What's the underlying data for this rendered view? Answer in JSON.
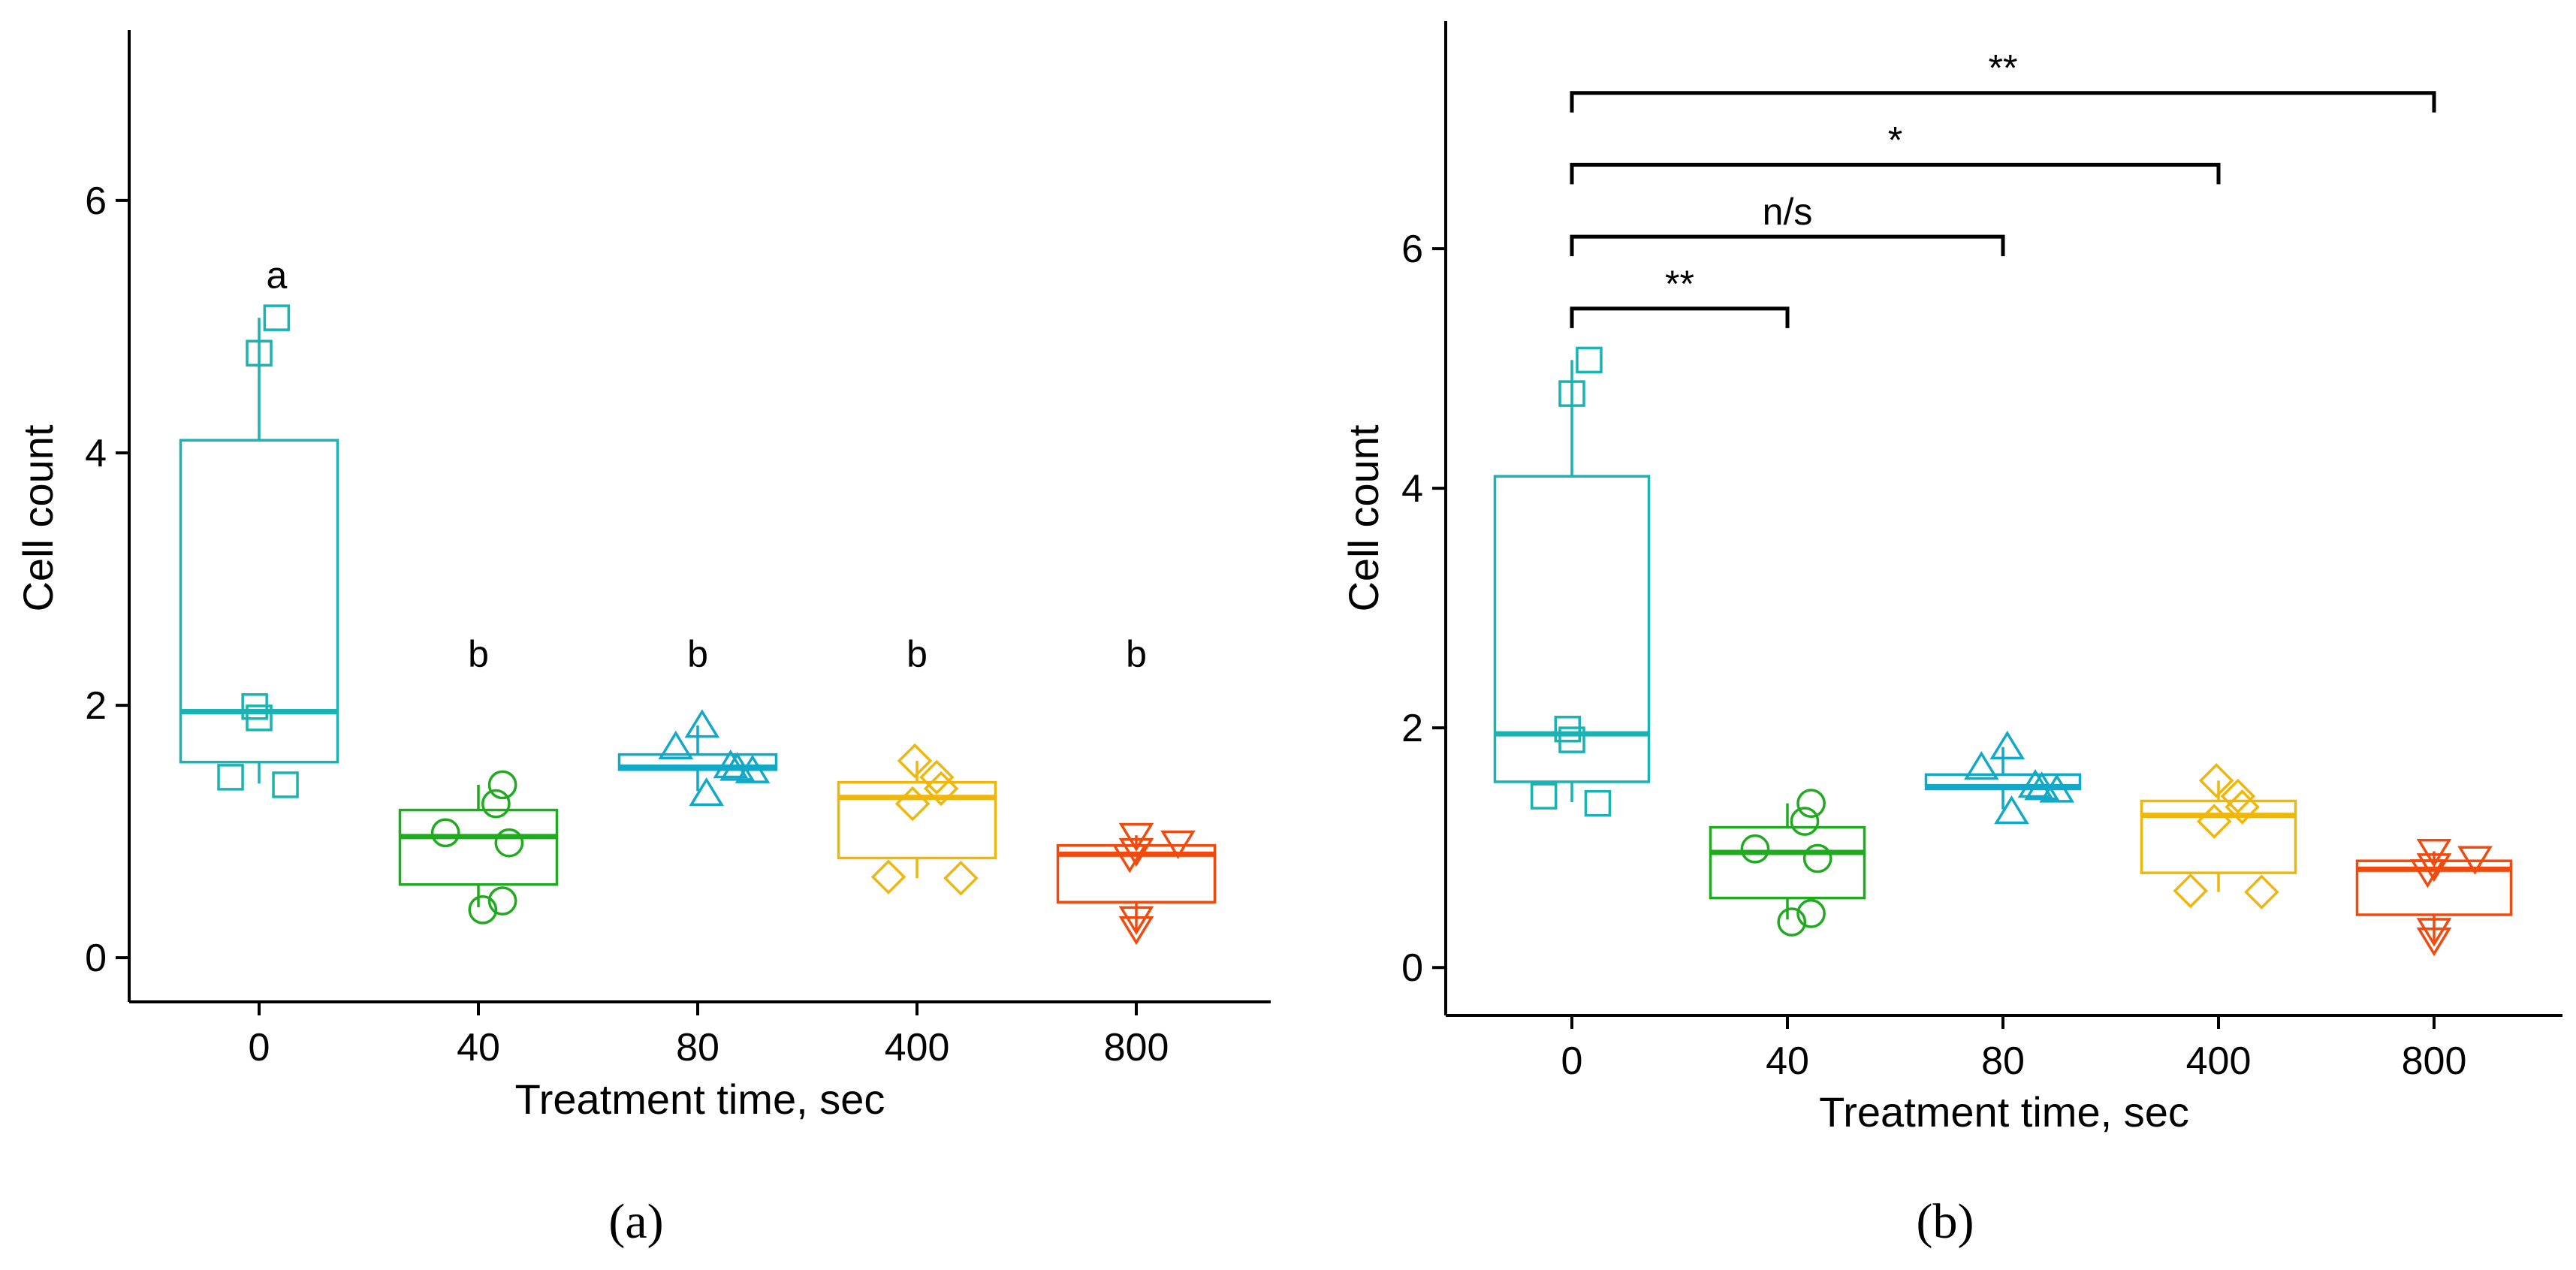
{
  "chart_data": [
    {
      "type": "box",
      "panel_label": "(a)",
      "title": "",
      "xlabel": "Treatment time, sec",
      "ylabel": "Cell count",
      "ylim": [
        -0.35,
        7.35
      ],
      "yticks": [
        0,
        2,
        4,
        6
      ],
      "categories": [
        "0",
        "40",
        "80",
        "400",
        "800"
      ],
      "colors": [
        "#1ab2b2",
        "#1faa1f",
        "#12a9c9",
        "#efb70e",
        "#f04a0e"
      ],
      "markers": [
        "square",
        "circle",
        "triangle-up",
        "diamond",
        "triangle-down"
      ],
      "boxes": [
        {
          "category": "0",
          "whisker_low": 1.38,
          "q1": 1.55,
          "median": 1.95,
          "q3": 4.1,
          "whisker_high": 5.07
        },
        {
          "category": "40",
          "whisker_low": 0.4,
          "q1": 0.58,
          "median": 0.96,
          "q3": 1.17,
          "whisker_high": 1.37
        },
        {
          "category": "80",
          "whisker_low": 1.32,
          "q1": 1.49,
          "median": 1.51,
          "q3": 1.61,
          "whisker_high": 1.84
        },
        {
          "category": "400",
          "whisker_low": 0.63,
          "q1": 0.79,
          "median": 1.27,
          "q3": 1.39,
          "whisker_high": 1.56
        },
        {
          "category": "800",
          "whisker_low": 0.22,
          "q1": 0.44,
          "median": 0.82,
          "q3": 0.89,
          "whisker_high": 0.97
        }
      ],
      "points": [
        {
          "category": "0",
          "y": [
            1.43,
            1.37,
            1.9,
            1.99,
            4.79,
            5.07
          ],
          "x_jitter": [
            -0.13,
            0.12,
            0.0,
            -0.02,
            0.0,
            0.08
          ]
        },
        {
          "category": "40",
          "y": [
            1.22,
            1.37,
            0.99,
            0.91,
            0.45,
            0.38
          ],
          "x_jitter": [
            0.08,
            0.11,
            -0.15,
            0.14,
            0.11,
            0.02
          ]
        },
        {
          "category": "80",
          "y": [
            1.67,
            1.84,
            1.52,
            1.48,
            1.5,
            1.3
          ],
          "x_jitter": [
            -0.1,
            0.02,
            0.15,
            0.25,
            0.18,
            0.04
          ]
        },
        {
          "category": "400",
          "y": [
            1.56,
            1.43,
            1.34,
            1.22,
            0.64,
            0.63
          ],
          "x_jitter": [
            -0.01,
            0.09,
            0.11,
            -0.02,
            -0.13,
            0.2
          ]
        },
        {
          "category": "800",
          "y": [
            0.97,
            0.91,
            0.85,
            0.8,
            0.31,
            0.23
          ],
          "x_jitter": [
            0.0,
            0.19,
            0.0,
            -0.03,
            0.0,
            0.0
          ]
        }
      ],
      "annotations": [
        {
          "category": "0",
          "label": "a",
          "y": 5.4
        },
        {
          "category": "40",
          "label": "b",
          "y": 2.4
        },
        {
          "category": "80",
          "label": "b",
          "y": 2.4
        },
        {
          "category": "400",
          "label": "b",
          "y": 2.4
        },
        {
          "category": "800",
          "label": "b",
          "y": 2.4
        }
      ]
    },
    {
      "type": "box",
      "panel_label": "(b)",
      "title": "",
      "xlabel": "Treatment time, sec",
      "ylabel": "Cell count",
      "ylim": [
        -0.4,
        7.9
      ],
      "yticks": [
        0,
        2,
        4,
        6
      ],
      "categories": [
        "0",
        "40",
        "80",
        "400",
        "800"
      ],
      "colors": [
        "#1ab2b2",
        "#1faa1f",
        "#12a9c9",
        "#efb70e",
        "#f04a0e"
      ],
      "markers": [
        "square",
        "circle",
        "triangle-up",
        "diamond",
        "triangle-down"
      ],
      "boxes": [
        {
          "category": "0",
          "whisker_low": 1.38,
          "q1": 1.55,
          "median": 1.95,
          "q3": 4.1,
          "whisker_high": 5.07
        },
        {
          "category": "40",
          "whisker_low": 0.4,
          "q1": 0.58,
          "median": 0.96,
          "q3": 1.17,
          "whisker_high": 1.37
        },
        {
          "category": "80",
          "whisker_low": 1.32,
          "q1": 1.49,
          "median": 1.51,
          "q3": 1.61,
          "whisker_high": 1.84
        },
        {
          "category": "400",
          "whisker_low": 0.63,
          "q1": 0.79,
          "median": 1.27,
          "q3": 1.39,
          "whisker_high": 1.56
        },
        {
          "category": "800",
          "whisker_low": 0.22,
          "q1": 0.44,
          "median": 0.82,
          "q3": 0.89,
          "whisker_high": 0.97
        }
      ],
      "points": [
        {
          "category": "0",
          "y": [
            1.43,
            1.37,
            1.9,
            1.99,
            4.79,
            5.07
          ],
          "x_jitter": [
            -0.13,
            0.12,
            0.0,
            -0.02,
            0.0,
            0.08
          ]
        },
        {
          "category": "40",
          "y": [
            1.22,
            1.37,
            0.99,
            0.91,
            0.45,
            0.38
          ],
          "x_jitter": [
            0.08,
            0.11,
            -0.15,
            0.14,
            0.11,
            0.02
          ]
        },
        {
          "category": "80",
          "y": [
            1.67,
            1.84,
            1.52,
            1.48,
            1.5,
            1.3
          ],
          "x_jitter": [
            -0.1,
            0.02,
            0.15,
            0.25,
            0.18,
            0.04
          ]
        },
        {
          "category": "400",
          "y": [
            1.56,
            1.43,
            1.34,
            1.22,
            0.64,
            0.63
          ],
          "x_jitter": [
            -0.01,
            0.09,
            0.11,
            -0.02,
            -0.13,
            0.2
          ]
        },
        {
          "category": "800",
          "y": [
            0.97,
            0.91,
            0.85,
            0.8,
            0.31,
            0.23
          ],
          "x_jitter": [
            0.0,
            0.19,
            0.0,
            -0.03,
            0.0,
            0.0
          ]
        }
      ],
      "comparisons": [
        {
          "from": "0",
          "to": "40",
          "label": "**",
          "y": 5.5
        },
        {
          "from": "0",
          "to": "80",
          "label": "n/s",
          "y": 6.1
        },
        {
          "from": "0",
          "to": "400",
          "label": "*",
          "y": 6.7
        },
        {
          "from": "0",
          "to": "800",
          "label": "**",
          "y": 7.3
        }
      ]
    }
  ]
}
